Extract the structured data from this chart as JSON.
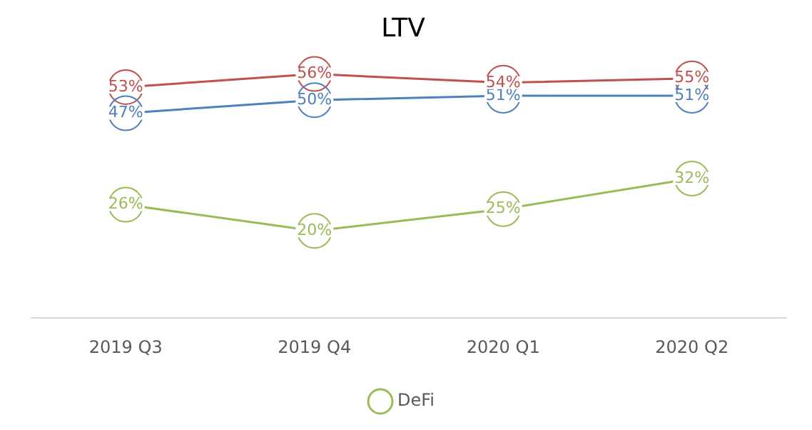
{
  "chart_data": {
    "type": "line",
    "title": "LTV",
    "categories": [
      "2019 Q3",
      "2019 Q4",
      "2020 Q1",
      "2020 Q2"
    ],
    "series": [
      {
        "color": "#4f81bd",
        "values": [
          47,
          50,
          51,
          51
        ],
        "value_labels": [
          "47%",
          "50%",
          "51%",
          "51%"
        ]
      },
      {
        "color": "#c0504d",
        "values": [
          53,
          56,
          54,
          55
        ],
        "value_labels": [
          "53%",
          "56%",
          "54%",
          "55%"
        ]
      },
      {
        "name": "DeFi",
        "color": "#9bbb59",
        "values": [
          26,
          20,
          25,
          32
        ],
        "value_labels": [
          "26%",
          "20%",
          "25%",
          "32%"
        ]
      }
    ],
    "tick_labels": "x",
    "grid": false,
    "legend": "bottom",
    "marker": "circle",
    "line_style": "solid"
  }
}
